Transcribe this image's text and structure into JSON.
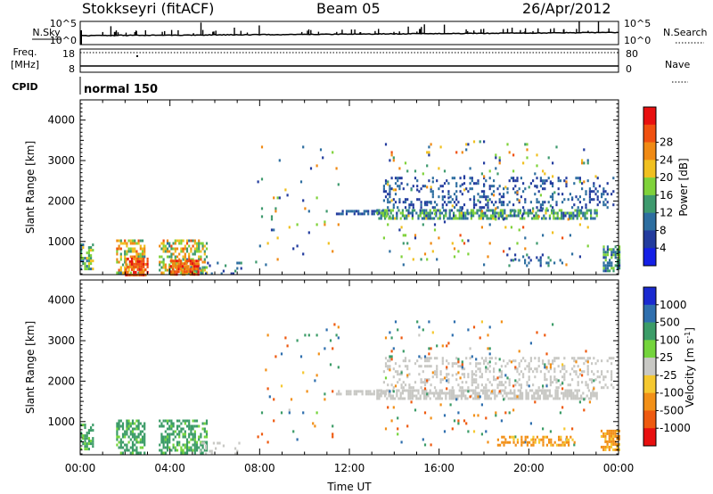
{
  "header": {
    "station": "Stokkseyri (fitACF)",
    "beam": "Beam 05",
    "date": "26/Apr/2012"
  },
  "summary_panels": {
    "nsky_label": "N.Sky",
    "nsky_tick_top": "10^5",
    "nsky_tick_bottom": "10^0",
    "nsearch_label": "N.Search",
    "nsearch_tick_top": "10^5",
    "nsearch_tick_bottom": "10^0",
    "freq_label": "Freq.",
    "freq_unit": "[MHz]",
    "freq_ticks": [
      "18",
      "8"
    ],
    "nave_label": "Nave",
    "nave_ticks": [
      "80",
      "0"
    ],
    "cpid_label": "CPID",
    "cpid_value": "normal 150"
  },
  "colors": {
    "power": [
      "#1520e6",
      "#233c9e",
      "#2d6ea0",
      "#3e9a6e",
      "#7fd23a",
      "#f0c020",
      "#f08a14",
      "#f05010",
      "#e81010"
    ],
    "velocity": [
      "#1a2ad0",
      "#2f6fae",
      "#3c9c68",
      "#74d43c",
      "#c8c8c4",
      "#f5c830",
      "#f29018",
      "#ee5a10",
      "#e81010"
    ]
  },
  "chart_data": [
    {
      "type": "heatmap",
      "title": "",
      "xlabel": "",
      "ylabel": "Slant Range [km]",
      "x_ticks": [
        "00:00",
        "04:00",
        "08:00",
        "12:00",
        "16:00",
        "20:00",
        "00:00"
      ],
      "xlim_hours": [
        0,
        24
      ],
      "y_ticks": [
        "1000",
        "2000",
        "3000",
        "4000"
      ],
      "ylim": [
        180,
        4500
      ],
      "grid": false,
      "colorbar": {
        "label": "Power [dB]",
        "tick_labels": [
          "4",
          "8",
          "12",
          "16",
          "20",
          "24",
          "28"
        ],
        "range": [
          0,
          32
        ]
      },
      "regions": [
        {
          "t": [
            0.0,
            0.6
          ],
          "r": [
            300,
            950
          ],
          "v": [
            6,
            20
          ],
          "d": 0.55
        },
        {
          "t": [
            1.6,
            2.9
          ],
          "r": [
            200,
            1050
          ],
          "v": [
            10,
            26
          ],
          "d": 0.55
        },
        {
          "t": [
            2.0,
            3.0
          ],
          "r": [
            200,
            600
          ],
          "v": [
            22,
            30
          ],
          "d": 0.8
        },
        {
          "t": [
            3.5,
            5.6
          ],
          "r": [
            200,
            1050
          ],
          "v": [
            10,
            26
          ],
          "d": 0.55
        },
        {
          "t": [
            4.0,
            5.3
          ],
          "r": [
            200,
            550
          ],
          "v": [
            22,
            30
          ],
          "d": 0.8
        },
        {
          "t": [
            5.3,
            7.2
          ],
          "r": [
            200,
            500
          ],
          "v": [
            4,
            12
          ],
          "d": 0.12
        },
        {
          "t": [
            7.8,
            11.5
          ],
          "r": [
            400,
            3500
          ],
          "v": [
            4,
            26
          ],
          "d": 0.025
        },
        {
          "t": [
            11.4,
            13.8
          ],
          "r": [
            1650,
            1780
          ],
          "v": [
            4,
            10
          ],
          "d": 0.6
        },
        {
          "t": [
            13.2,
            23.0
          ],
          "r": [
            1550,
            1800
          ],
          "v": [
            6,
            18
          ],
          "d": 0.65
        },
        {
          "t": [
            13.5,
            23.8
          ],
          "r": [
            1850,
            2600
          ],
          "v": [
            4,
            10
          ],
          "d": 0.22
        },
        {
          "t": [
            13.5,
            23.0
          ],
          "r": [
            400,
            3500
          ],
          "v": [
            4,
            26
          ],
          "d": 0.03
        },
        {
          "t": [
            19.0,
            21.5
          ],
          "r": [
            400,
            700
          ],
          "v": [
            4,
            12
          ],
          "d": 0.25
        },
        {
          "t": [
            23.3,
            24.0
          ],
          "r": [
            300,
            900
          ],
          "v": [
            6,
            16
          ],
          "d": 0.6
        }
      ]
    },
    {
      "type": "heatmap",
      "title": "",
      "xlabel": "Time UT",
      "ylabel": "Slant Range [km]",
      "x_ticks": [
        "00:00",
        "04:00",
        "08:00",
        "12:00",
        "16:00",
        "20:00",
        "00:00"
      ],
      "xlim_hours": [
        0,
        24
      ],
      "y_ticks": [
        "1000",
        "2000",
        "3000",
        "4000"
      ],
      "ylim": [
        180,
        4500
      ],
      "grid": false,
      "colorbar": {
        "label": "Velocity [m s^-1]",
        "tick_labels": [
          "1000",
          "500",
          "100",
          "25",
          "-25",
          "-100",
          "-500",
          "-1000"
        ],
        "range": [
          -1200,
          1200
        ]
      },
      "regions": [
        {
          "t": [
            0.0,
            0.6
          ],
          "r": [
            300,
            950
          ],
          "v": [
            30,
            300
          ],
          "d": 0.55
        },
        {
          "t": [
            1.6,
            2.9
          ],
          "r": [
            200,
            1050
          ],
          "v": [
            40,
            400
          ],
          "d": 0.55
        },
        {
          "t": [
            3.5,
            5.6
          ],
          "r": [
            200,
            1050
          ],
          "v": [
            40,
            400
          ],
          "d": 0.55
        },
        {
          "t": [
            5.3,
            7.2
          ],
          "r": [
            200,
            500
          ],
          "v": [
            -20,
            20
          ],
          "d": 0.2
        },
        {
          "t": [
            7.8,
            11.5
          ],
          "r": [
            400,
            3500
          ],
          "v": [
            -900,
            900
          ],
          "d": 0.025
        },
        {
          "t": [
            11.4,
            13.8
          ],
          "r": [
            1650,
            1780
          ],
          "v": [
            -20,
            20
          ],
          "d": 0.6
        },
        {
          "t": [
            13.2,
            23.0
          ],
          "r": [
            1550,
            1800
          ],
          "v": [
            -20,
            20
          ],
          "d": 0.65
        },
        {
          "t": [
            13.5,
            23.8
          ],
          "r": [
            1850,
            2600
          ],
          "v": [
            -20,
            20
          ],
          "d": 0.25
        },
        {
          "t": [
            13.5,
            23.0
          ],
          "r": [
            400,
            3500
          ],
          "v": [
            -900,
            900
          ],
          "d": 0.03
        },
        {
          "t": [
            18.5,
            22.0
          ],
          "r": [
            400,
            650
          ],
          "v": [
            -300,
            -60
          ],
          "d": 0.35
        },
        {
          "t": [
            23.2,
            24.0
          ],
          "r": [
            300,
            800
          ],
          "v": [
            -300,
            -60
          ],
          "d": 0.7
        }
      ]
    }
  ]
}
